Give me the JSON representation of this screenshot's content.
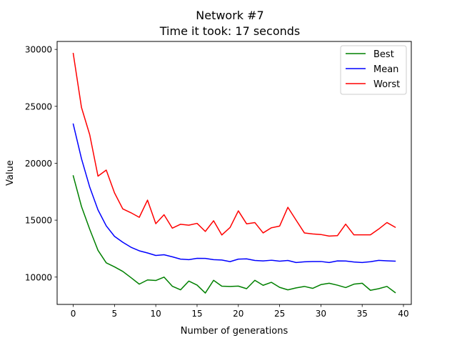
{
  "chart_data": {
    "type": "line",
    "title": "Network #7",
    "subtitle": "Time it took: 17 seconds",
    "xlabel": "Number of generations",
    "ylabel": "Value",
    "xlim": [
      -1.95,
      40.95
    ],
    "ylim": [
      7600,
      30700
    ],
    "xticks": [
      0,
      5,
      10,
      15,
      20,
      25,
      30,
      35,
      40
    ],
    "yticks": [
      10000,
      15000,
      20000,
      25000,
      30000
    ],
    "grid": false,
    "legend_position": "top-right",
    "x": [
      0,
      1,
      2,
      3,
      4,
      5,
      6,
      7,
      8,
      9,
      10,
      11,
      12,
      13,
      14,
      15,
      16,
      17,
      18,
      19,
      20,
      21,
      22,
      23,
      24,
      25,
      26,
      27,
      28,
      29,
      30,
      31,
      32,
      33,
      34,
      35,
      36,
      37,
      38,
      39
    ],
    "series": [
      {
        "name": "Best",
        "color": "#008000",
        "values": [
          18900,
          16200,
          14200,
          12350,
          11250,
          10900,
          10500,
          9950,
          9380,
          9750,
          9700,
          10000,
          9200,
          8880,
          9650,
          9300,
          8600,
          9720,
          9200,
          9180,
          9210,
          8980,
          9720,
          9280,
          9540,
          9100,
          8880,
          9050,
          9180,
          9010,
          9340,
          9460,
          9290,
          9080,
          9380,
          9460,
          8840,
          8980,
          9180,
          8640
        ]
      },
      {
        "name": "Mean",
        "color": "#0000ff",
        "values": [
          23450,
          20400,
          17900,
          15900,
          14500,
          13580,
          13060,
          12620,
          12310,
          12120,
          11900,
          11960,
          11780,
          11580,
          11530,
          11650,
          11640,
          11530,
          11500,
          11360,
          11580,
          11600,
          11460,
          11420,
          11480,
          11400,
          11460,
          11280,
          11340,
          11370,
          11370,
          11280,
          11420,
          11410,
          11330,
          11280,
          11350,
          11470,
          11430,
          11400
        ]
      },
      {
        "name": "Worst",
        "color": "#ff0000",
        "values": [
          29650,
          24900,
          22500,
          18870,
          19400,
          17400,
          15990,
          15650,
          15250,
          16760,
          14690,
          15480,
          14300,
          14640,
          14560,
          14720,
          14010,
          14950,
          13700,
          14360,
          15820,
          14680,
          14790,
          13880,
          14330,
          14480,
          16130,
          15000,
          13880,
          13790,
          13740,
          13600,
          13640,
          14650,
          13710,
          13710,
          13710,
          14220,
          14790,
          14380
        ]
      }
    ]
  }
}
